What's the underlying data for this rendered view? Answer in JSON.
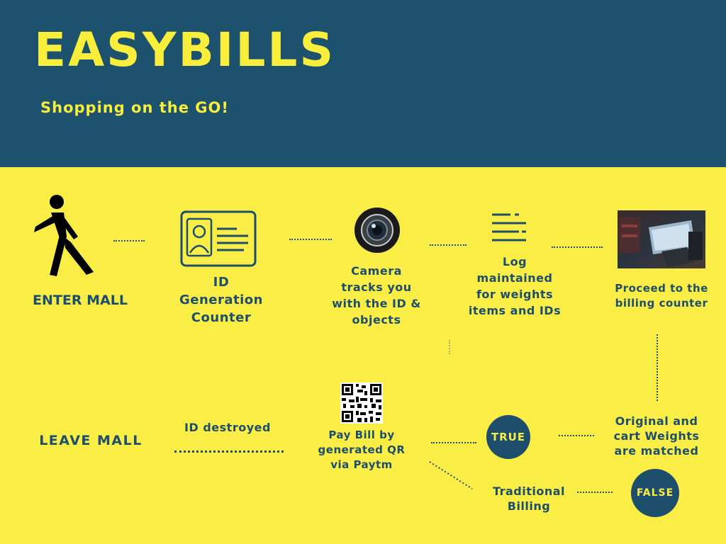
{
  "header": {
    "title": "EASYBILLS",
    "subtitle": "Shopping on the GO!"
  },
  "colors": {
    "header_bg": "#1d526f",
    "accent_yellow": "#faed46",
    "text_blue": "#1d4e6c"
  },
  "steps": {
    "enter_mall": "ENTER MALL",
    "id_generation": "ID\nGeneration\nCounter",
    "camera": "Camera\ntracks you\nwith the ID &\nobjects",
    "log": "Log\nmaintained\nfor weights\nitems and IDs",
    "billing_counter": "Proceed to the\nbilling counter",
    "weights_matched": "Original and\ncart Weights\nare matched",
    "traditional_billing": "Traditional\nBilling",
    "pay_bill": "Pay Bill by\ngenerated QR\nvia Paytm",
    "id_destroyed": "ID destroyed",
    "leave_mall": "LEAVE MALL"
  },
  "badges": {
    "true_label": "TRUE",
    "false_label": "FALSE"
  },
  "icons": {
    "walking": "walking-person-icon",
    "id_card": "id-card-icon",
    "camera": "camera-lens-icon",
    "log": "log-lines-icon",
    "billing_photo": "billing-machine-photo",
    "qr": "qr-code-icon"
  }
}
